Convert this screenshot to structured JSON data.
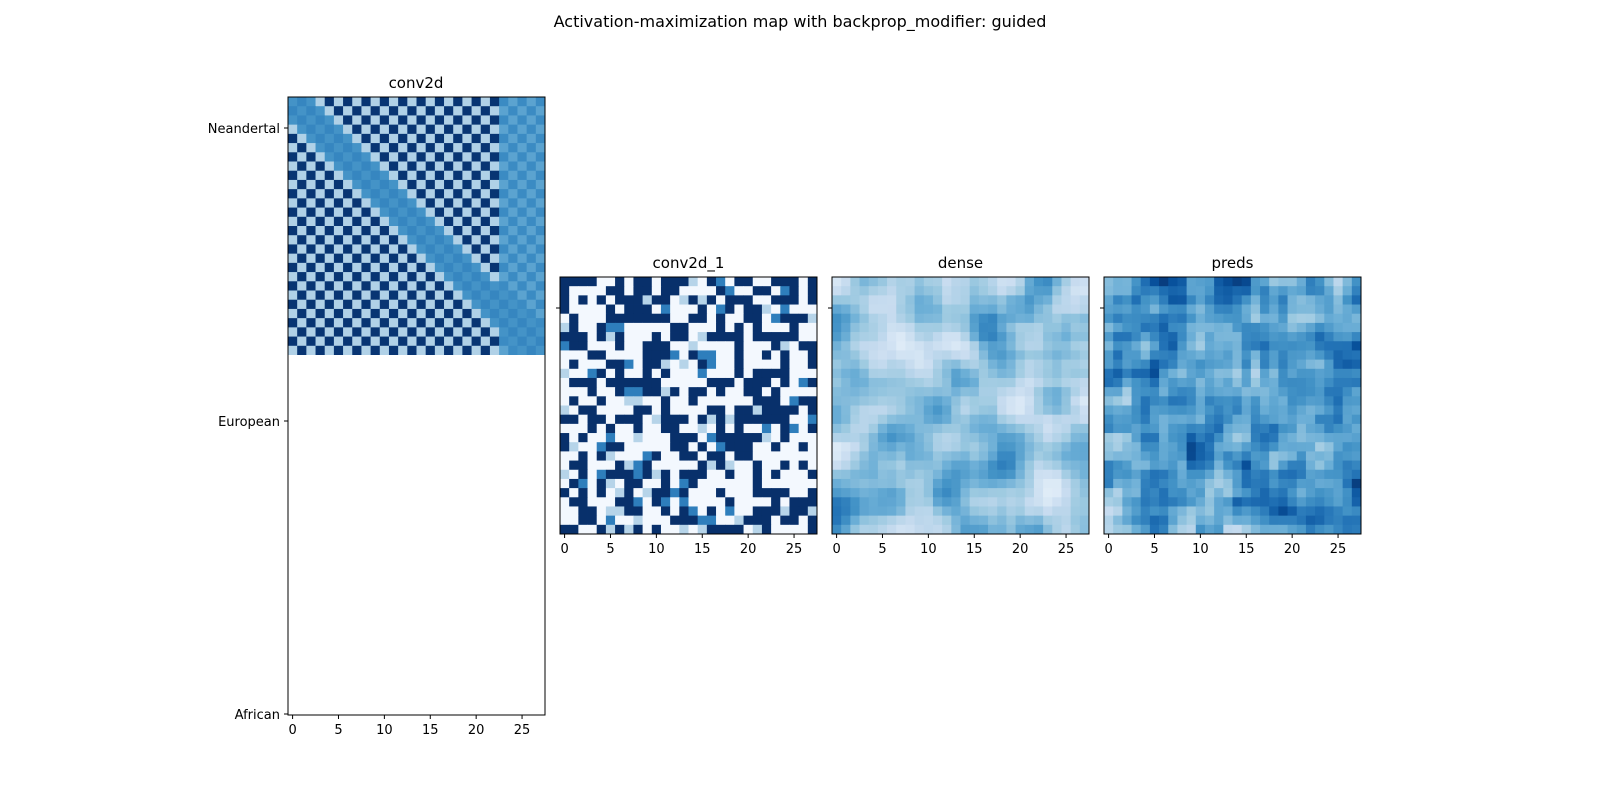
{
  "figure": {
    "title": "Activation-maximization map with backprop_modifier: guided"
  },
  "chart_data": [
    {
      "type": "heatmap",
      "title": "conv2d",
      "colormap": "Blues",
      "grid": false,
      "x_ticks": [
        "0",
        "5",
        "10",
        "15",
        "20",
        "25"
      ],
      "y_ticks": [
        "Neandertal",
        "European",
        "African"
      ],
      "matrix_size": [
        28,
        28
      ],
      "pattern": "checkerboard of dark navy and light blue cells with a mid-blue diagonal band; visible in the upper portion only"
    },
    {
      "type": "heatmap",
      "title": "conv2d_1",
      "colormap": "Blues",
      "grid": false,
      "x_ticks": [
        "0",
        "5",
        "10",
        "15",
        "20",
        "25"
      ],
      "matrix_size": [
        28,
        28
      ],
      "pattern": "binary-like scatter of dark navy and near-white cells"
    },
    {
      "type": "heatmap",
      "title": "dense",
      "colormap": "Blues",
      "grid": false,
      "x_ticks": [
        "0",
        "5",
        "10",
        "15",
        "20",
        "25"
      ],
      "matrix_size": [
        28,
        28
      ],
      "pattern": "smooth light-to-mid blue textured field"
    },
    {
      "type": "heatmap",
      "title": "preds",
      "colormap": "Blues",
      "grid": false,
      "x_ticks": [
        "0",
        "5",
        "10",
        "15",
        "20",
        "25"
      ],
      "matrix_size": [
        28,
        28
      ],
      "pattern": "mid blue textured field with darker streaks"
    }
  ]
}
